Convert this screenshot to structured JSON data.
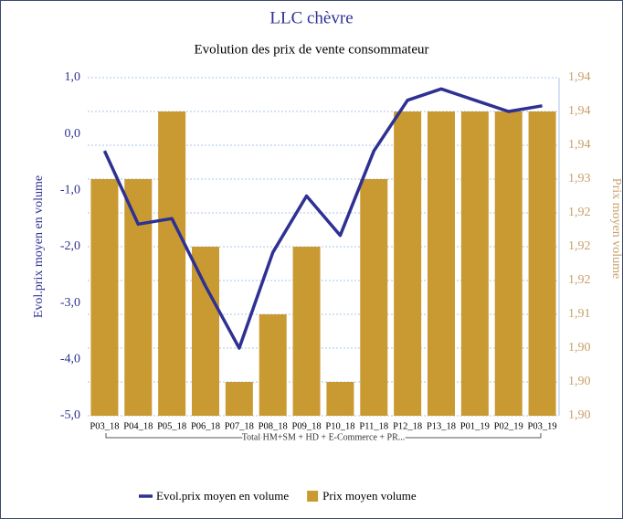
{
  "chart_data": {
    "type": "bar-line",
    "title": "LLC chèvre",
    "subtitle": "Evolution des prix de vente consommateur",
    "y_label": "Evol.prix moyen en volume",
    "y2_label": "Prix moyen volume",
    "group_label": "Total HM+SM + HD + E-Commerce + PR...",
    "categories": [
      "P03_18",
      "P04_18",
      "P05_18",
      "P06_18",
      "P07_18",
      "P08_18",
      "P09_18",
      "P10_18",
      "P11_18",
      "P12_18",
      "P13_18",
      "P01_19",
      "P02_19",
      "P03_19"
    ],
    "ylim": [
      -5,
      1
    ],
    "yticks": [
      {
        "value": 1,
        "label": "1,0"
      },
      {
        "value": 0,
        "label": "0,0"
      },
      {
        "value": -1,
        "label": "-1,0"
      },
      {
        "value": -2,
        "label": "-2,0"
      },
      {
        "value": -3,
        "label": "-3,0"
      },
      {
        "value": -4,
        "label": "-4,0"
      },
      {
        "value": -5,
        "label": "-5,0"
      }
    ],
    "y2lim": [
      1.895,
      1.945
    ],
    "y2ticks": [
      {
        "value": 1.945,
        "label": "1,94"
      },
      {
        "value": 1.94,
        "label": "1,94"
      },
      {
        "value": 1.935,
        "label": "1,94"
      },
      {
        "value": 1.93,
        "label": "1,93"
      },
      {
        "value": 1.925,
        "label": "1,92"
      },
      {
        "value": 1.92,
        "label": "1,92"
      },
      {
        "value": 1.915,
        "label": "1,92"
      },
      {
        "value": 1.91,
        "label": "1,91"
      },
      {
        "value": 1.905,
        "label": "1,90"
      },
      {
        "value": 1.9,
        "label": "1,90"
      },
      {
        "value": 1.895,
        "label": "1,90"
      }
    ],
    "grid": true,
    "series": [
      {
        "name": "Evol.prix moyen en volume",
        "type": "line",
        "color": "#2e3192",
        "values": [
          -0.3,
          -1.6,
          -1.5,
          -2.7,
          -3.8,
          -2.1,
          -1.1,
          -1.8,
          -0.3,
          0.6,
          0.8,
          0.6,
          0.4,
          0.5
        ]
      },
      {
        "name": "Prix moyen volume",
        "type": "bar",
        "axis": "y2",
        "color": "#c99a32",
        "values": [
          1.93,
          1.93,
          1.94,
          1.92,
          1.9,
          1.91,
          1.92,
          1.9,
          1.93,
          1.94,
          1.94,
          1.94,
          1.94,
          1.94
        ]
      }
    ]
  }
}
